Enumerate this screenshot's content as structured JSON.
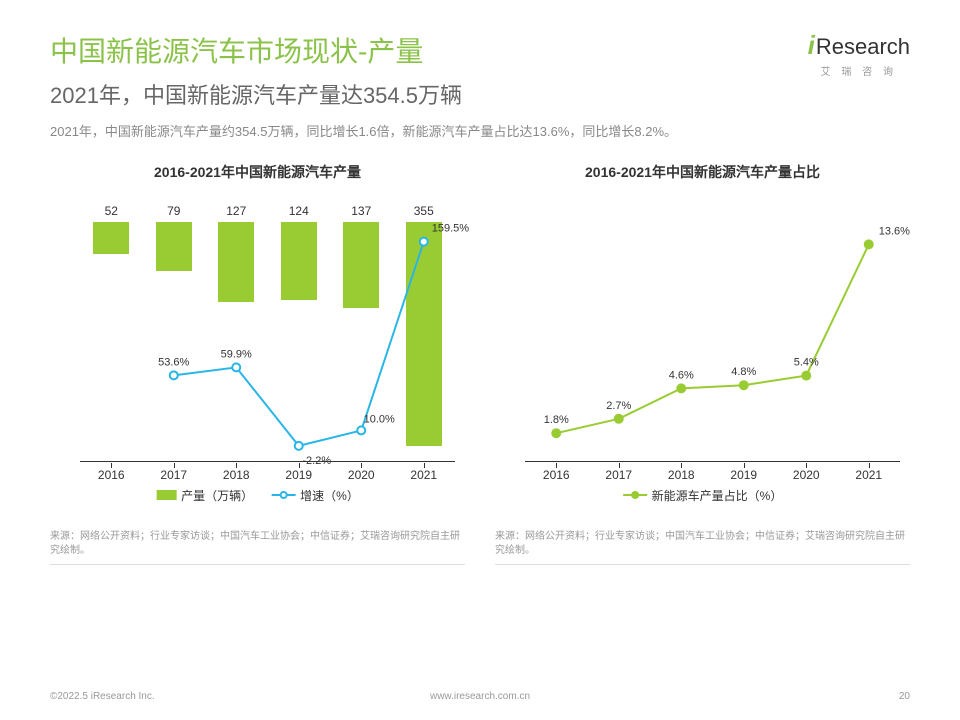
{
  "title": {
    "text": "中国新能源汽车市场现状-产量",
    "color": "#8bc34a"
  },
  "subtitle": "2021年，中国新能源汽车产量达354.5万辆",
  "description": "2021年，中国新能源汽车产量约354.5万辆，同比增长1.6倍，新能源汽车产量占比达13.6%，同比增长8.2%。",
  "logo": {
    "i": "i",
    "rest": "Research",
    "sub": "艾 瑞 咨 询",
    "accent": "#8bc34a"
  },
  "chart1": {
    "title": "2016-2021年中国新能源汽车产量",
    "type": "bar+line",
    "categories": [
      "2016",
      "2017",
      "2018",
      "2019",
      "2020",
      "2021"
    ],
    "bars": {
      "values": [
        52,
        79,
        127,
        124,
        137,
        355
      ],
      "labels": [
        "52",
        "79",
        "127",
        "124",
        "137",
        "355"
      ],
      "color": "#99cc33",
      "ymax": 380,
      "legend": "产量（万辆）"
    },
    "line": {
      "values": [
        null,
        53.6,
        59.9,
        -2.2,
        10.0,
        159.5
      ],
      "labels": [
        null,
        "53.6%",
        "59.9%",
        "-2.2%",
        "10.0%",
        "159.5%"
      ],
      "color": "#29b6e6",
      "ymin": -15,
      "ymax": 175,
      "legend": "增速（%）",
      "marker_fill": "#ffffff",
      "marker_stroke": "#29b6e6",
      "line_width": 2,
      "marker_r": 4
    },
    "axis_color": "#333333",
    "source": "来源：网络公开资料；行业专家访谈；中国汽车工业协会；中信证券；艾瑞咨询研究院自主研究绘制。"
  },
  "chart2": {
    "title": "2016-2021年中国新能源汽车产量占比",
    "type": "line",
    "categories": [
      "2016",
      "2017",
      "2018",
      "2019",
      "2020",
      "2021"
    ],
    "line": {
      "values": [
        1.8,
        2.7,
        4.6,
        4.8,
        5.4,
        13.6
      ],
      "labels": [
        "1.8%",
        "2.7%",
        "4.6%",
        "4.8%",
        "5.4%",
        "13.6%"
      ],
      "color": "#99cc33",
      "ymin": 0,
      "ymax": 15,
      "legend": "新能源车产量占比（%）",
      "marker_fill": "#99cc33",
      "marker_stroke": "#99cc33",
      "line_width": 2,
      "marker_r": 4
    },
    "axis_color": "#333333",
    "source": "来源：网络公开资料；行业专家访谈；中国汽车工业协会；中信证券；艾瑞咨询研究院自主研究绘制。"
  },
  "footer": {
    "copyright": "©2022.5 iResearch Inc.",
    "url": "www.iresearch.com.cn",
    "page": "20"
  }
}
